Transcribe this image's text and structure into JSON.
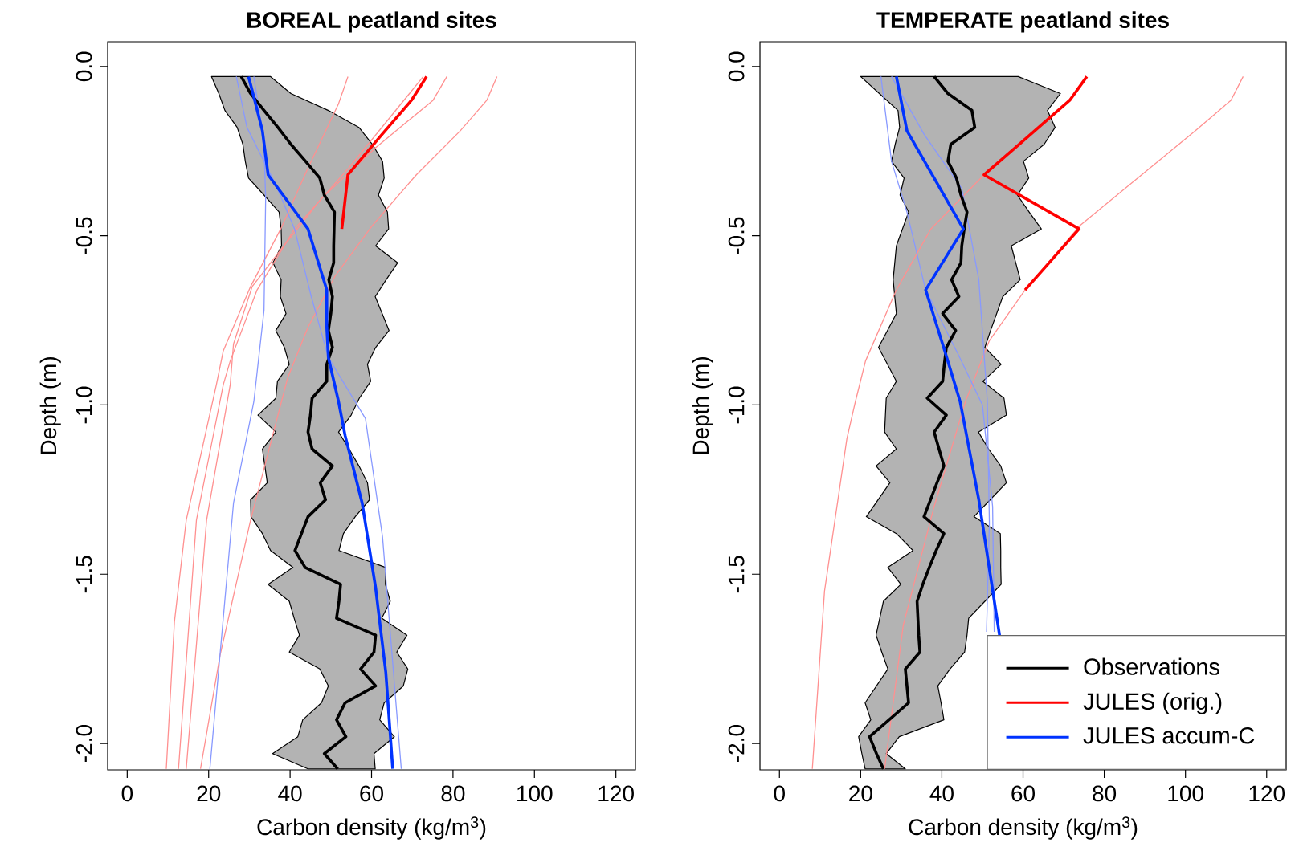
{
  "chart_data": [
    {
      "type": "line",
      "title": "BOREAL peatland sites",
      "xlabel": "Carbon density (kg/m$^{3}$)",
      "ylabel": "Depth (m)",
      "xlim": [
        -4.8,
        124.8
      ],
      "ylim": [
        -2.078,
        0.073
      ],
      "xticks": [
        0,
        20,
        40,
        60,
        80,
        100,
        120
      ],
      "yticks": [
        {
          "value": 0,
          "label": "0.0"
        },
        {
          "value": -0.5,
          "label": "-0.5"
        },
        {
          "value": -1,
          "label": "-1.0"
        },
        {
          "value": -1.5,
          "label": "-1.5"
        },
        {
          "value": -2,
          "label": "-2.0"
        }
      ],
      "legend": false,
      "series": [
        {
          "type": "area",
          "color": "#b3b3b3",
          "x": [
            20.7,
            22.5,
            24.0,
            27.0,
            28.4,
            29.0,
            29.8,
            33.6,
            37.3,
            37.8,
            37.9,
            35.8,
            37.8,
            37.6,
            39.0,
            36.5,
            38.6,
            39.8,
            36.9,
            36.5,
            32.1,
            36.5,
            33.2,
            33.8,
            34.4,
            30.3,
            30.4,
            33.2,
            35.2,
            40.7,
            34.6,
            39.8,
            41.0,
            42.3,
            39.8,
            47.3,
            49.4,
            47.7,
            43.1,
            41.9,
            35.7,
            44.4,
            60.9,
            60.6,
            65.6,
            62.0,
            63.1,
            67.8,
            68.9,
            66.2,
            68.7,
            62.5,
            64.6,
            63.4,
            63.5,
            52.0,
            53.1,
            56.0,
            59.5,
            59.0,
            56.9,
            54.5,
            51.9,
            55.0,
            57.0,
            59.8,
            59.0,
            61.0,
            64.3,
            62.6,
            60.9,
            63.6,
            66.4,
            61.0,
            64.2,
            63.9,
            61.7,
            63.1,
            62.7,
            60.2,
            56.9,
            49.4,
            40.2,
            35.2
          ],
          "values": [
            -0.03,
            -0.08,
            -0.13,
            -0.18,
            -0.23,
            -0.28,
            -0.33,
            -0.38,
            -0.43,
            -0.48,
            -0.53,
            -0.58,
            -0.63,
            -0.68,
            -0.73,
            -0.78,
            -0.83,
            -0.88,
            -0.93,
            -0.98,
            -1.03,
            -1.08,
            -1.13,
            -1.18,
            -1.23,
            -1.28,
            -1.33,
            -1.38,
            -1.43,
            -1.48,
            -1.53,
            -1.58,
            -1.63,
            -1.68,
            -1.73,
            -1.78,
            -1.83,
            -1.88,
            -1.93,
            -1.98,
            -2.03,
            -2.075,
            -2.075,
            -2.03,
            -1.98,
            -1.93,
            -1.88,
            -1.83,
            -1.78,
            -1.73,
            -1.68,
            -1.63,
            -1.58,
            -1.53,
            -1.48,
            -1.43,
            -1.38,
            -1.33,
            -1.28,
            -1.23,
            -1.18,
            -1.13,
            -1.08,
            -1.03,
            -0.98,
            -0.93,
            -0.88,
            -0.83,
            -0.78,
            -0.73,
            -0.68,
            -0.63,
            -0.58,
            -0.53,
            -0.48,
            -0.43,
            -0.38,
            -0.33,
            -0.28,
            -0.23,
            -0.18,
            -0.13,
            -0.08,
            -0.03
          ]
        },
        {
          "color": "#ff9090",
          "x": [
            54.2,
            51.9,
            44.4,
            37.7,
            30.3,
            23.6,
            21.9,
            14.5,
            11.6,
            9.6
          ],
          "values": [
            -0.03,
            -0.11,
            -0.3,
            -0.48,
            -0.65,
            -0.84,
            -0.94,
            -1.34,
            -1.64,
            -2.075
          ]
        },
        {
          "color": "#ff9090",
          "x": [
            78.5,
            75.1,
            61.0,
            47.7,
            37.8,
            30.7,
            26.1,
            25.3,
            19.5,
            14.5
          ],
          "values": [
            -0.03,
            -0.1,
            -0.24,
            -0.39,
            -0.54,
            -0.65,
            -0.82,
            -0.94,
            -1.34,
            -2.075
          ]
        },
        {
          "color": "#ff9090",
          "x": [
            90.8,
            88.3,
            81.8,
            71.0,
            60.2,
            51.0,
            44.4,
            39.4,
            30.3,
            22.8,
            18.0
          ],
          "values": [
            -0.03,
            -0.1,
            -0.19,
            -0.32,
            -0.47,
            -0.62,
            -0.77,
            -0.92,
            -1.34,
            -1.74,
            -2.075
          ]
        },
        {
          "color": "#ff9090",
          "x": [
            72.7,
            54.4,
            41.1,
            31.9,
            25.3,
            23.6,
            17.0,
            12.6
          ],
          "values": [
            -0.03,
            -0.3,
            -0.48,
            -0.66,
            -0.87,
            -0.94,
            -1.34,
            -2.075
          ]
        },
        {
          "color": "#8899ff",
          "x": [
            26.8,
            29.4,
            36.5,
            41.1,
            45.2,
            49.4,
            58.5,
            62.7,
            67.3
          ],
          "values": [
            -0.03,
            -0.18,
            -0.35,
            -0.48,
            -0.68,
            -0.86,
            -1.04,
            -1.39,
            -2.075
          ]
        },
        {
          "color": "#8899ff",
          "x": [
            31.1,
            33.6,
            34.0,
            33.6,
            31.1,
            26.1,
            20.3
          ],
          "values": [
            -0.03,
            -0.23,
            -0.39,
            -0.72,
            -0.99,
            -1.29,
            -2.075
          ]
        },
        {
          "color": "#000000",
          "x": [
            28.0,
            30.3,
            33.6,
            37.0,
            40.2,
            43.8,
            47.3,
            48.4,
            50.9,
            50.8,
            50.7,
            50.7,
            49.5,
            50.4,
            50.0,
            49.4,
            50.4,
            49.0,
            49.0,
            45.4,
            45.0,
            44.4,
            45.4,
            50.4,
            47.4,
            48.7,
            44.4,
            42.8,
            41.2,
            43.7,
            52.4,
            52.0,
            51.4,
            61.0,
            60.6,
            57.3,
            61.0,
            53.5,
            51.4,
            53.7,
            48.4,
            51.7
          ],
          "values": [
            -0.03,
            -0.08,
            -0.13,
            -0.18,
            -0.23,
            -0.28,
            -0.33,
            -0.38,
            -0.43,
            -0.48,
            -0.53,
            -0.58,
            -0.63,
            -0.68,
            -0.73,
            -0.78,
            -0.83,
            -0.88,
            -0.93,
            -0.98,
            -1.03,
            -1.08,
            -1.13,
            -1.18,
            -1.23,
            -1.28,
            -1.33,
            -1.38,
            -1.43,
            -1.48,
            -1.53,
            -1.58,
            -1.63,
            -1.68,
            -1.73,
            -1.78,
            -1.83,
            -1.88,
            -1.93,
            -1.98,
            -2.03,
            -2.075
          ]
        },
        {
          "color": "#ff0000",
          "x": [
            73.5,
            69.8,
            61.9,
            54.2,
            52.7
          ],
          "values": [
            -0.03,
            -0.1,
            -0.21,
            -0.32,
            -0.48
          ]
        },
        {
          "color": "#0033ff",
          "x": [
            29.8,
            31.1,
            33.2,
            34.6,
            44.4,
            49.0,
            49.0,
            49.4,
            51.9,
            53.5,
            57.7,
            61.0,
            63.5,
            65.2
          ],
          "values": [
            -0.03,
            -0.09,
            -0.19,
            -0.32,
            -0.48,
            -0.66,
            -0.77,
            -0.86,
            -0.99,
            -1.09,
            -1.29,
            -1.54,
            -1.79,
            -2.075
          ]
        }
      ]
    },
    {
      "type": "line",
      "title": "TEMPERATE peatland sites",
      "xlabel": "Carbon density (kg/m$^{3}$)",
      "ylabel": "Depth (m)",
      "xlim": [
        -4.8,
        124.8
      ],
      "ylim": [
        -2.078,
        0.073
      ],
      "xticks": [
        0,
        20,
        40,
        60,
        80,
        100,
        120
      ],
      "yticks": [
        {
          "value": 0,
          "label": "0.0"
        },
        {
          "value": -0.5,
          "label": "-0.5"
        },
        {
          "value": -1,
          "label": "-1.0"
        },
        {
          "value": -1.5,
          "label": "-1.5"
        },
        {
          "value": -2,
          "label": "-2.0"
        }
      ],
      "legend": "bottom right",
      "series": [
        {
          "type": "area",
          "color": "#b3b3b3",
          "x": [
            20.0,
            24.6,
            29.2,
            29.6,
            28.5,
            27.6,
            30.7,
            29.7,
            31.8,
            30.3,
            28.8,
            28.4,
            28.0,
            28.4,
            28.8,
            26.6,
            24.4,
            26.6,
            28.8,
            26.3,
            26.1,
            25.9,
            28.8,
            23.8,
            27.2,
            24.3,
            21.4,
            28.8,
            32.9,
            26.7,
            29.9,
            25.6,
            24.7,
            23.8,
            25.2,
            26.7,
            23.9,
            21.1,
            22.5,
            19.5,
            20.3,
            21.1,
            31.0,
            26.3,
            29.5,
            40.5,
            39.8,
            39.0,
            42.0,
            45.6,
            46.2,
            46.6,
            50.6,
            54.6,
            54.5,
            54.5,
            54.4,
            47.9,
            51.9,
            55.9,
            54.5,
            51.5,
            49.0,
            55.9,
            55.3,
            50.1,
            54.6,
            50.6,
            52.0,
            53.5,
            55.0,
            59.3,
            58.2,
            57.1,
            64.5,
            61.5,
            58.6,
            61.4,
            60.1,
            65.2,
            67.9,
            66.0,
            69.2,
            58.8
          ],
          "values": [
            -0.03,
            -0.08,
            -0.13,
            -0.18,
            -0.23,
            -0.28,
            -0.33,
            -0.38,
            -0.43,
            -0.48,
            -0.53,
            -0.58,
            -0.63,
            -0.68,
            -0.73,
            -0.78,
            -0.83,
            -0.88,
            -0.93,
            -0.98,
            -1.03,
            -1.08,
            -1.13,
            -1.18,
            -1.23,
            -1.28,
            -1.33,
            -1.38,
            -1.43,
            -1.48,
            -1.53,
            -1.58,
            -1.63,
            -1.68,
            -1.73,
            -1.78,
            -1.83,
            -1.88,
            -1.93,
            -1.98,
            -2.03,
            -2.075,
            -2.075,
            -2.03,
            -1.98,
            -1.93,
            -1.88,
            -1.83,
            -1.78,
            -1.73,
            -1.68,
            -1.63,
            -1.58,
            -1.53,
            -1.48,
            -1.43,
            -1.38,
            -1.33,
            -1.28,
            -1.23,
            -1.18,
            -1.13,
            -1.08,
            -1.03,
            -0.98,
            -0.93,
            -0.88,
            -0.83,
            -0.78,
            -0.73,
            -0.68,
            -0.63,
            -0.58,
            -0.53,
            -0.48,
            -0.43,
            -0.38,
            -0.33,
            -0.28,
            -0.23,
            -0.18,
            -0.13,
            -0.08,
            -0.03
          ]
        },
        {
          "color": "#ff9090",
          "x": [
            114.2,
            111.2,
            102.4,
            74.0,
            60.5,
            51.7,
            45.8,
            38.1,
            30.5,
            25.9
          ],
          "values": [
            -0.03,
            -0.1,
            -0.19,
            -0.47,
            -0.66,
            -0.81,
            -0.99,
            -1.3,
            -1.65,
            -2.075
          ]
        },
        {
          "color": "#ff9090",
          "x": [
            50.4,
            37.3,
            28.8,
            21.2,
            18.7,
            16.6,
            11.1,
            8.1
          ],
          "values": [
            -0.32,
            -0.48,
            -0.66,
            -0.87,
            -0.99,
            -1.1,
            -1.55,
            -2.075
          ]
        },
        {
          "color": "#8899ff",
          "x": [
            25.0,
            27.6,
            31.4,
            36.0,
            44.0,
            50.0,
            52.5,
            52.9
          ],
          "values": [
            -0.03,
            -0.28,
            -0.43,
            -0.66,
            -0.85,
            -1.0,
            -1.3,
            -1.67
          ]
        },
        {
          "color": "#8899ff",
          "x": [
            27.6,
            35.6,
            44.9,
            49.1,
            51.2,
            51.7,
            51.0
          ],
          "values": [
            -0.03,
            -0.2,
            -0.36,
            -0.63,
            -0.99,
            -1.35,
            -1.67
          ]
        },
        {
          "name": "Observations",
          "color": "#000000",
          "x": [
            38.1,
            41.5,
            47.4,
            48.1,
            42.2,
            41.5,
            43.6,
            44.7,
            46.2,
            45.5,
            44.9,
            44.7,
            42.4,
            44.2,
            40.2,
            43.4,
            41.1,
            40.6,
            40.2,
            36.4,
            41.1,
            38.1,
            39.3,
            40.5,
            38.8,
            37.2,
            35.6,
            40.5,
            38.6,
            36.9,
            35.3,
            33.9,
            34.1,
            34.3,
            34.6,
            31.0,
            31.4,
            31.8,
            27.0,
            22.2,
            23.9,
            25.6
          ],
          "values": [
            -0.03,
            -0.08,
            -0.13,
            -0.18,
            -0.23,
            -0.28,
            -0.33,
            -0.38,
            -0.43,
            -0.48,
            -0.53,
            -0.58,
            -0.63,
            -0.68,
            -0.73,
            -0.78,
            -0.83,
            -0.88,
            -0.93,
            -0.98,
            -1.03,
            -1.08,
            -1.13,
            -1.18,
            -1.23,
            -1.28,
            -1.33,
            -1.38,
            -1.43,
            -1.48,
            -1.53,
            -1.58,
            -1.63,
            -1.68,
            -1.73,
            -1.78,
            -1.83,
            -1.88,
            -1.93,
            -1.98,
            -2.03,
            -2.075
          ]
        },
        {
          "name": "JULES (orig.)",
          "color": "#ff0000",
          "x": [
            75.7,
            71.5,
            50.4,
            73.8,
            60.5
          ],
          "values": [
            -0.03,
            -0.1,
            -0.32,
            -0.48,
            -0.66
          ]
        },
        {
          "name": "JULES accum-C",
          "color": "#0033ff",
          "x": [
            28.8,
            31.4,
            45.3,
            36.0,
            40.7,
            44.5,
            49.1,
            54.2
          ],
          "values": [
            -0.03,
            -0.19,
            -0.48,
            -0.66,
            -0.84,
            -0.99,
            -1.28,
            -1.68
          ]
        }
      ]
    }
  ]
}
